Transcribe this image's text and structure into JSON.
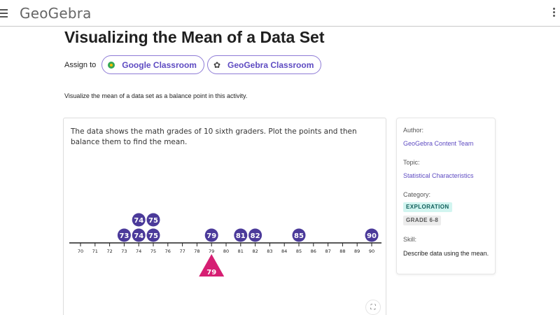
{
  "app": {
    "logo_text": "GeoGebra"
  },
  "page": {
    "title": "Visualizing the Mean of a Data Set",
    "description": "Visualize the mean of a data set as a balance point in this activity."
  },
  "assign": {
    "label": "Assign to",
    "google_classroom": "Google Classroom",
    "geogebra_classroom": "GeoGebra Classroom"
  },
  "applet": {
    "instructions": "The data shows the math grades of 10 sixth graders. Plot the points and then balance them to find the mean.",
    "axis_ticks": [
      "70",
      "71",
      "72",
      "73",
      "74",
      "75",
      "76",
      "77",
      "78",
      "79",
      "80",
      "81",
      "82",
      "83",
      "84",
      "85",
      "86",
      "87",
      "88",
      "89",
      "90"
    ],
    "points": [
      73,
      74,
      74,
      75,
      75,
      79,
      81,
      82,
      85,
      90
    ],
    "balance_value": "79",
    "colors": {
      "point": "#4b3a9a",
      "fulcrum": "#d61f73"
    }
  },
  "sidebar": {
    "author_label": "Author:",
    "author": "GeoGebra Content Team",
    "topic_label": "Topic:",
    "topic": "Statistical Characteristics",
    "category_label": "Category:",
    "category_badges": [
      "EXPLORATION",
      "GRADE 6-8"
    ],
    "skill_label": "Skill:",
    "skill": "Describe data using the mean."
  }
}
